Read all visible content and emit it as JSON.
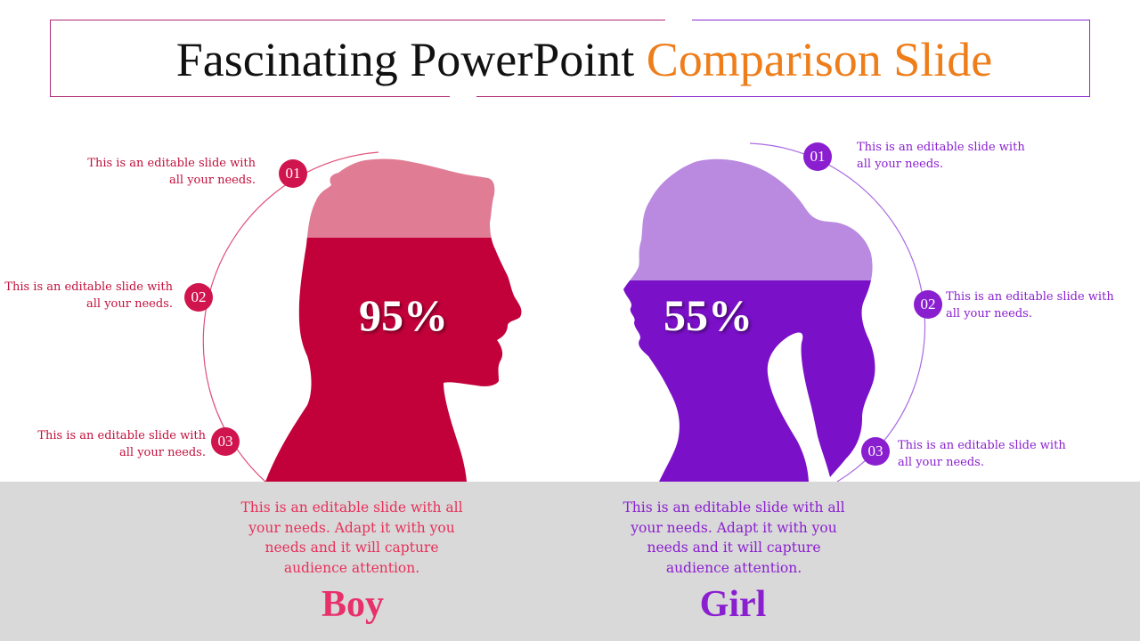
{
  "title": {
    "main": "Fascinating PowerPoint",
    "accent": "Comparison Slide"
  },
  "colors": {
    "boy": "#c2103c",
    "boy_light": "#e07d95",
    "girl": "#7a10c8",
    "girl_light": "#b98ae0",
    "accent": "#ee7d1a",
    "band": "#d9d9d9"
  },
  "boy": {
    "percent": "95%",
    "label": "Boy",
    "description": "This is an editable slide with all your needs. Adapt it with you needs and it will capture audience attention.",
    "points": [
      {
        "num": "01",
        "text": "This is an editable slide with all your needs."
      },
      {
        "num": "02",
        "text": "This is an editable slide with all your needs."
      },
      {
        "num": "03",
        "text": "This is an editable slide with all your needs."
      }
    ]
  },
  "girl": {
    "percent": "55%",
    "label": "Girl",
    "description": "This is an editable slide with all your needs. Adapt it with you needs and it will capture audience attention.",
    "points": [
      {
        "num": "01",
        "text": "This is an editable slide with all your needs."
      },
      {
        "num": "02",
        "text": "This is an editable slide with all your needs."
      },
      {
        "num": "03",
        "text": "This is an editable slide with all your needs."
      }
    ]
  }
}
